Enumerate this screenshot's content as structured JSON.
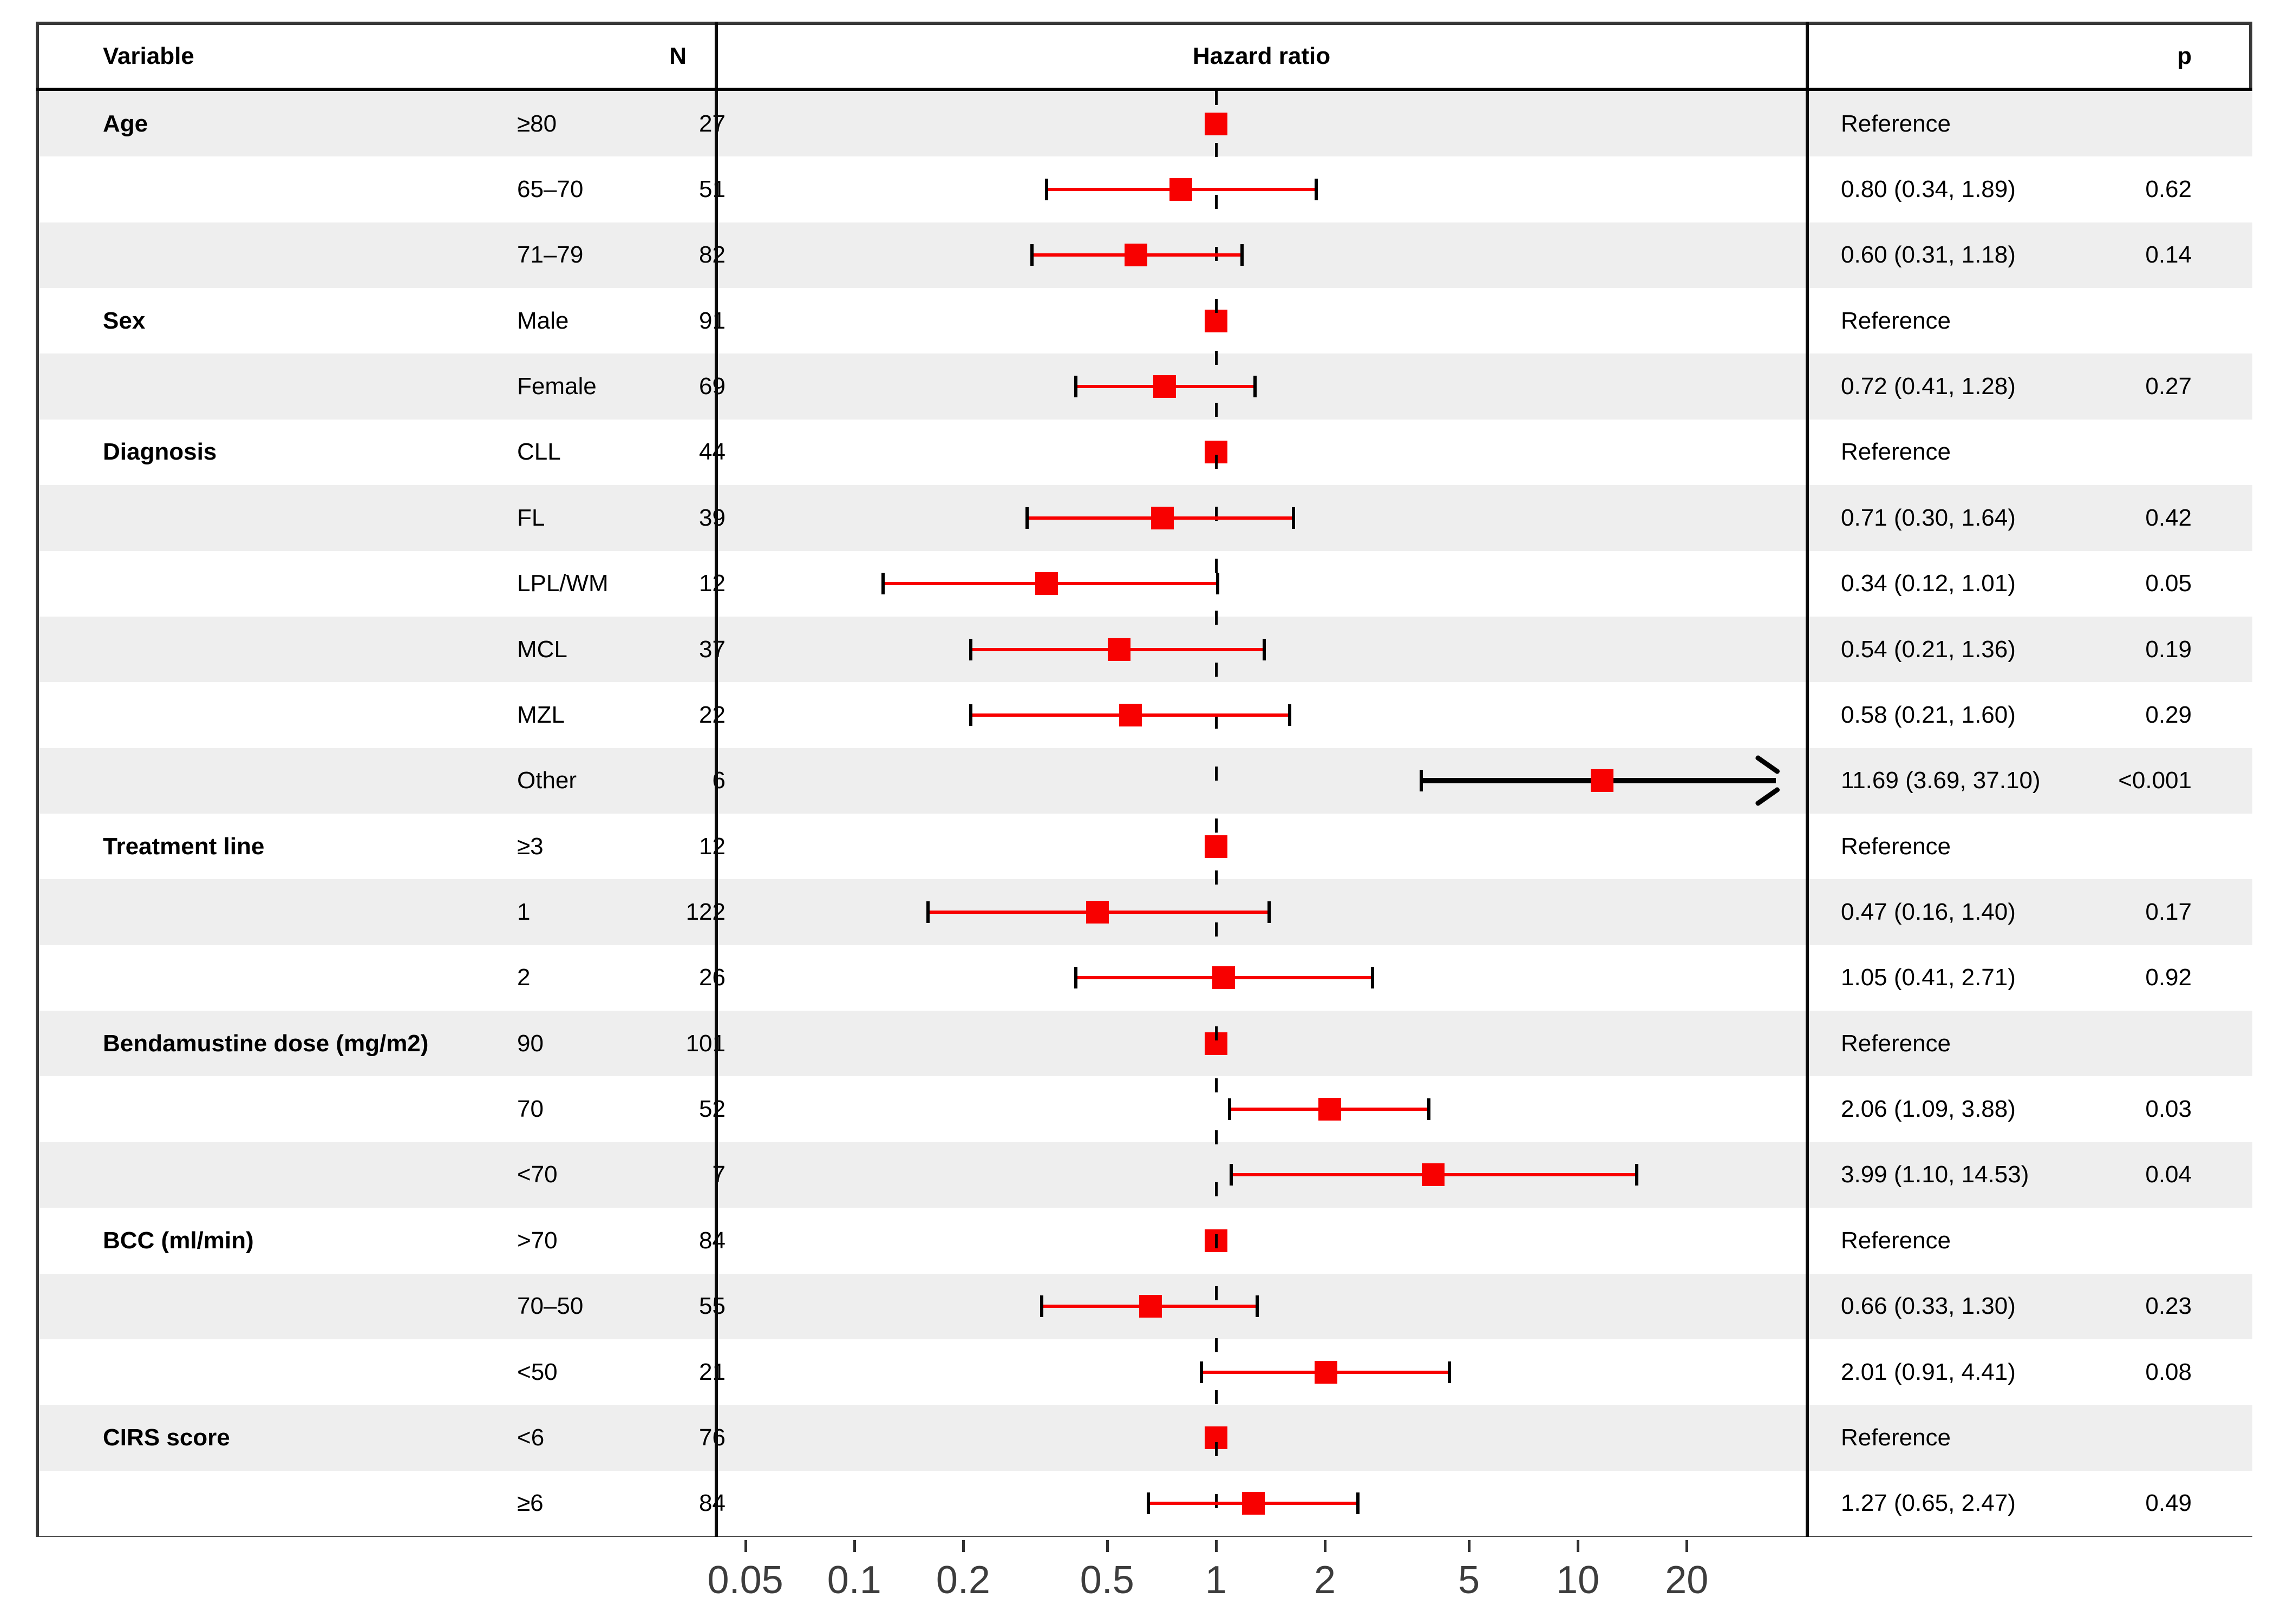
{
  "header": {
    "variable": "Variable",
    "n": "N",
    "hazard_ratio": "Hazard ratio",
    "p": "p"
  },
  "colors": {
    "accent_red": "#f80000",
    "row_alt_gray": "#eeeeee",
    "row_white": "#ffffff",
    "frame_border": "#383838",
    "line_black": "#000000",
    "axis_text": "#3d3d3d"
  },
  "chart_data": {
    "type": "scatter",
    "subtype": "forest_plot",
    "title": "Hazard ratio",
    "x_scale": "log",
    "x_domain": [
      0.042,
      42.5
    ],
    "x_ticks": [
      0.05,
      0.1,
      0.2,
      0.5,
      1,
      2,
      5,
      10,
      20
    ],
    "x_tick_labels": [
      "0.05",
      "0.1",
      "0.2",
      "0.5",
      "1",
      "2",
      "5",
      "10",
      "20"
    ],
    "reference_line": 1,
    "legend": "none",
    "rows": [
      {
        "variable": "Age",
        "level": "≥80",
        "n": "27",
        "type": "ref",
        "hr": 1,
        "lo": null,
        "hi": null,
        "hr_text": "Reference",
        "p": ""
      },
      {
        "variable": "",
        "level": "65–70",
        "n": "51",
        "type": "est",
        "hr": 0.8,
        "lo": 0.34,
        "hi": 1.89,
        "hr_text": "0.80 (0.34, 1.89)",
        "p": "0.62"
      },
      {
        "variable": "",
        "level": "71–79",
        "n": "82",
        "type": "est",
        "hr": 0.6,
        "lo": 0.31,
        "hi": 1.18,
        "hr_text": "0.60 (0.31, 1.18)",
        "p": "0.14"
      },
      {
        "variable": "Sex",
        "level": "Male",
        "n": "91",
        "type": "ref",
        "hr": 1,
        "lo": null,
        "hi": null,
        "hr_text": "Reference",
        "p": ""
      },
      {
        "variable": "",
        "level": "Female",
        "n": "69",
        "type": "est",
        "hr": 0.72,
        "lo": 0.41,
        "hi": 1.28,
        "hr_text": "0.72 (0.41, 1.28)",
        "p": "0.27"
      },
      {
        "variable": "Diagnosis",
        "level": "CLL",
        "n": "44",
        "type": "ref",
        "hr": 1,
        "lo": null,
        "hi": null,
        "hr_text": "Reference",
        "p": ""
      },
      {
        "variable": "",
        "level": "FL",
        "n": "39",
        "type": "est",
        "hr": 0.71,
        "lo": 0.3,
        "hi": 1.64,
        "hr_text": "0.71 (0.30, 1.64)",
        "p": "0.42"
      },
      {
        "variable": "",
        "level": "LPL/WM",
        "n": "12",
        "type": "est",
        "hr": 0.34,
        "lo": 0.12,
        "hi": 1.01,
        "hr_text": "0.34 (0.12, 1.01)",
        "p": "0.05"
      },
      {
        "variable": "",
        "level": "MCL",
        "n": "37",
        "type": "est",
        "hr": 0.54,
        "lo": 0.21,
        "hi": 1.36,
        "hr_text": "0.54 (0.21, 1.36)",
        "p": "0.19"
      },
      {
        "variable": "",
        "level": "MZL",
        "n": "22",
        "type": "est",
        "hr": 0.58,
        "lo": 0.21,
        "hi": 1.6,
        "hr_text": "0.58 (0.21, 1.60)",
        "p": "0.29"
      },
      {
        "variable": "",
        "level": "Other",
        "n": "6",
        "type": "arrow",
        "hr": 11.69,
        "lo": 3.69,
        "hi": 37.1,
        "hr_text": "11.69 (3.69, 37.10)",
        "p": "<0.001"
      },
      {
        "variable": "Treatment line",
        "level": "≥3",
        "n": "12",
        "type": "ref",
        "hr": 1,
        "lo": null,
        "hi": null,
        "hr_text": "Reference",
        "p": ""
      },
      {
        "variable": "",
        "level": "1",
        "n": "122",
        "type": "est",
        "hr": 0.47,
        "lo": 0.16,
        "hi": 1.4,
        "hr_text": "0.47 (0.16, 1.40)",
        "p": "0.17"
      },
      {
        "variable": "",
        "level": "2",
        "n": "26",
        "type": "est",
        "hr": 1.05,
        "lo": 0.41,
        "hi": 2.71,
        "hr_text": "1.05 (0.41, 2.71)",
        "p": "0.92"
      },
      {
        "variable": "Bendamustine dose (mg/m2)",
        "level": "90",
        "n": "101",
        "type": "ref",
        "hr": 1,
        "lo": null,
        "hi": null,
        "hr_text": "Reference",
        "p": ""
      },
      {
        "variable": "",
        "level": "70",
        "n": "52",
        "type": "est",
        "hr": 2.06,
        "lo": 1.09,
        "hi": 3.88,
        "hr_text": "2.06 (1.09, 3.88)",
        "p": "0.03"
      },
      {
        "variable": "",
        "level": "<70",
        "n": "7",
        "type": "est",
        "hr": 3.99,
        "lo": 1.1,
        "hi": 14.53,
        "hr_text": "3.99 (1.10, 14.53)",
        "p": "0.04"
      },
      {
        "variable": "BCC (ml/min)",
        "level": ">70",
        "n": "84",
        "type": "ref",
        "hr": 1,
        "lo": null,
        "hi": null,
        "hr_text": "Reference",
        "p": ""
      },
      {
        "variable": "",
        "level": "70–50",
        "n": "55",
        "type": "est",
        "hr": 0.66,
        "lo": 0.33,
        "hi": 1.3,
        "hr_text": "0.66 (0.33, 1.30)",
        "p": "0.23"
      },
      {
        "variable": "",
        "level": "<50",
        "n": "21",
        "type": "est",
        "hr": 2.01,
        "lo": 0.91,
        "hi": 4.41,
        "hr_text": "2.01 (0.91, 4.41)",
        "p": "0.08"
      },
      {
        "variable": "CIRS score",
        "level": "<6",
        "n": "76",
        "type": "ref",
        "hr": 1,
        "lo": null,
        "hi": null,
        "hr_text": "Reference",
        "p": ""
      },
      {
        "variable": "",
        "level": "≥6",
        "n": "84",
        "type": "est",
        "hr": 1.27,
        "lo": 0.65,
        "hi": 2.47,
        "hr_text": "1.27 (0.65, 2.47)",
        "p": "0.49"
      }
    ]
  }
}
